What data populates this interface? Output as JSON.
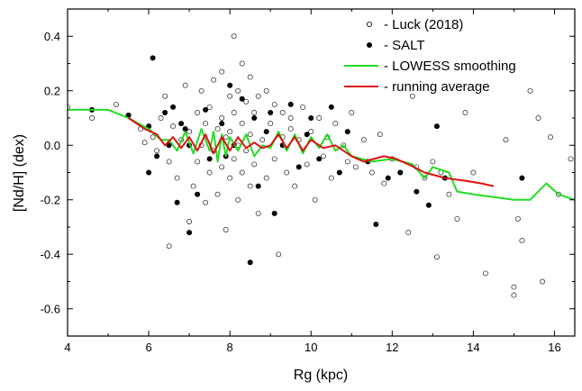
{
  "chart_data": {
    "type": "scatter",
    "xlabel": "Rg   (kpc)",
    "ylabel": "[Nd/H]  (dex)",
    "xlim": [
      4,
      16.5
    ],
    "ylim": [
      -0.7,
      0.5
    ],
    "x_ticks": [
      "4",
      "6",
      "8",
      "10",
      "12",
      "14",
      "16"
    ],
    "y_ticks": [
      "0.4",
      "0.2",
      "0.0",
      "-0.2",
      "-0.4",
      "-0.6"
    ],
    "grid": false,
    "legend_position": "top-right",
    "legend": [
      {
        "symbol": "open-circle",
        "label": "- Luck (2018)"
      },
      {
        "symbol": "filled-circle",
        "label": "- SALT"
      },
      {
        "symbol": "line",
        "color": "#22dd22",
        "label": "- LOWESS smoothing"
      },
      {
        "symbol": "line",
        "color": "#dd1111",
        "label": "- running average"
      }
    ],
    "series": [
      {
        "name": "Luck (2018)",
        "marker": "open-circle",
        "points": [
          [
            4.0,
            0.14
          ],
          [
            4.6,
            0.1
          ],
          [
            5.2,
            0.15
          ],
          [
            5.5,
            0.11
          ],
          [
            5.8,
            0.06
          ],
          [
            5.9,
            0.01
          ],
          [
            6.1,
            0.03
          ],
          [
            6.2,
            -0.02
          ],
          [
            6.3,
            0.1
          ],
          [
            6.4,
            0.18
          ],
          [
            6.5,
            -0.06
          ],
          [
            6.5,
            -0.37
          ],
          [
            6.6,
            0.07
          ],
          [
            6.7,
            -0.12
          ],
          [
            6.8,
            0.02
          ],
          [
            6.9,
            0.22
          ],
          [
            7.0,
            -0.28
          ],
          [
            7.0,
            0.05
          ],
          [
            7.1,
            -0.15
          ],
          [
            7.2,
            0.12
          ],
          [
            7.2,
            -0.06
          ],
          [
            7.3,
            0.2
          ],
          [
            7.3,
            0.0
          ],
          [
            7.4,
            -0.21
          ],
          [
            7.4,
            0.08
          ],
          [
            7.5,
            0.14
          ],
          [
            7.5,
            -0.1
          ],
          [
            7.6,
            0.24
          ],
          [
            7.6,
            -0.02
          ],
          [
            7.7,
            0.06
          ],
          [
            7.7,
            -0.18
          ],
          [
            7.8,
            0.27
          ],
          [
            7.8,
            0.1
          ],
          [
            7.8,
            -0.08
          ],
          [
            7.9,
            0.03
          ],
          [
            7.9,
            -0.31
          ],
          [
            8.0,
            0.18
          ],
          [
            8.0,
            -0.12
          ],
          [
            8.0,
            0.05
          ],
          [
            8.1,
            0.4
          ],
          [
            8.1,
            0.12
          ],
          [
            8.1,
            -0.05
          ],
          [
            8.2,
            0.2
          ],
          [
            8.2,
            -0.2
          ],
          [
            8.2,
            0.0
          ],
          [
            8.3,
            0.3
          ],
          [
            8.3,
            0.08
          ],
          [
            8.3,
            -0.1
          ],
          [
            8.4,
            0.16
          ],
          [
            8.4,
            -0.02
          ],
          [
            8.5,
            0.25
          ],
          [
            8.5,
            -0.15
          ],
          [
            8.5,
            0.04
          ],
          [
            8.6,
            0.12
          ],
          [
            8.6,
            -0.07
          ],
          [
            8.7,
            0.18
          ],
          [
            8.7,
            -0.25
          ],
          [
            8.8,
            0.02
          ],
          [
            8.9,
            0.2
          ],
          [
            8.9,
            -0.12
          ],
          [
            9.0,
            0.08
          ],
          [
            9.1,
            -0.05
          ],
          [
            9.1,
            0.15
          ],
          [
            9.2,
            -0.4
          ],
          [
            9.3,
            0.03
          ],
          [
            9.3,
            0.12
          ],
          [
            9.4,
            -0.1
          ],
          [
            9.5,
            0.06
          ],
          [
            9.5,
            0.1
          ],
          [
            9.6,
            -0.15
          ],
          [
            9.7,
            0.02
          ],
          [
            9.8,
            0.14
          ],
          [
            9.9,
            -0.07
          ],
          [
            10.0,
            0.05
          ],
          [
            10.1,
            -0.2
          ],
          [
            10.2,
            0.1
          ],
          [
            10.3,
            -0.04
          ],
          [
            10.4,
            0.03
          ],
          [
            10.5,
            -0.12
          ],
          [
            10.6,
            0.08
          ],
          [
            10.8,
            0.0
          ],
          [
            10.9,
            -0.06
          ],
          [
            11.0,
            0.12
          ],
          [
            11.1,
            -0.08
          ],
          [
            11.3,
            0.02
          ],
          [
            11.5,
            -0.1
          ],
          [
            11.7,
            0.04
          ],
          [
            11.8,
            -0.14
          ],
          [
            12.0,
            -0.05
          ],
          [
            12.2,
            -0.1
          ],
          [
            12.4,
            -0.32
          ],
          [
            12.5,
            0.18
          ],
          [
            12.6,
            -0.08
          ],
          [
            12.8,
            -0.12
          ],
          [
            13.0,
            -0.06
          ],
          [
            13.1,
            -0.41
          ],
          [
            13.2,
            -0.1
          ],
          [
            13.4,
            -0.18
          ],
          [
            13.6,
            -0.27
          ],
          [
            13.8,
            0.12
          ],
          [
            14.0,
            -0.1
          ],
          [
            14.3,
            -0.47
          ],
          [
            14.8,
            0.02
          ],
          [
            15.0,
            -0.52
          ],
          [
            15.0,
            -0.55
          ],
          [
            15.1,
            -0.27
          ],
          [
            15.2,
            -0.35
          ],
          [
            15.4,
            0.2
          ],
          [
            15.6,
            0.1
          ],
          [
            15.7,
            -0.5
          ],
          [
            15.9,
            0.03
          ],
          [
            16.1,
            -0.18
          ],
          [
            16.4,
            -0.05
          ]
        ]
      },
      {
        "name": "SALT",
        "marker": "filled-circle",
        "points": [
          [
            4.6,
            0.13
          ],
          [
            5.5,
            0.11
          ],
          [
            6.0,
            0.07
          ],
          [
            6.0,
            -0.1
          ],
          [
            6.1,
            0.32
          ],
          [
            6.2,
            -0.04
          ],
          [
            6.4,
            0.12
          ],
          [
            6.5,
            0.0
          ],
          [
            6.6,
            0.14
          ],
          [
            6.7,
            -0.21
          ],
          [
            6.8,
            0.08
          ],
          [
            6.9,
            0.06
          ],
          [
            7.0,
            -0.32
          ],
          [
            7.0,
            0.0
          ],
          [
            7.2,
            -0.18
          ],
          [
            7.4,
            0.13
          ],
          [
            7.5,
            -0.05
          ],
          [
            7.8,
            0.08
          ],
          [
            7.9,
            -0.04
          ],
          [
            8.0,
            0.22
          ],
          [
            8.1,
            0.0
          ],
          [
            8.3,
            0.17
          ],
          [
            8.5,
            -0.43
          ],
          [
            8.6,
            0.1
          ],
          [
            8.7,
            -0.15
          ],
          [
            8.9,
            0.05
          ],
          [
            9.0,
            0.12
          ],
          [
            9.1,
            -0.25
          ],
          [
            9.3,
            0.0
          ],
          [
            9.5,
            0.15
          ],
          [
            9.7,
            -0.08
          ],
          [
            9.9,
            0.04
          ],
          [
            10.0,
            0.1
          ],
          [
            10.2,
            -0.05
          ],
          [
            10.5,
            0.14
          ],
          [
            10.7,
            -0.1
          ],
          [
            10.9,
            0.05
          ],
          [
            11.4,
            -0.06
          ],
          [
            11.6,
            -0.29
          ],
          [
            11.9,
            -0.12
          ],
          [
            12.2,
            -0.1
          ],
          [
            12.6,
            -0.17
          ],
          [
            12.9,
            -0.22
          ],
          [
            13.1,
            0.07
          ],
          [
            13.3,
            -0.12
          ],
          [
            15.2,
            -0.12
          ]
        ]
      },
      {
        "name": "LOWESS smoothing",
        "type": "line",
        "color": "#22dd22",
        "points": [
          [
            4.0,
            0.13
          ],
          [
            5.0,
            0.13
          ],
          [
            5.5,
            0.1
          ],
          [
            6.0,
            0.06
          ],
          [
            6.3,
            0.02
          ],
          [
            6.5,
            0.02
          ],
          [
            6.7,
            -0.02
          ],
          [
            6.9,
            0.05
          ],
          [
            7.1,
            -0.03
          ],
          [
            7.3,
            0.06
          ],
          [
            7.5,
            -0.02
          ],
          [
            7.6,
            0.05
          ],
          [
            7.7,
            -0.06
          ],
          [
            7.8,
            0.04
          ],
          [
            7.9,
            -0.04
          ],
          [
            8.0,
            0.03
          ],
          [
            8.2,
            -0.02
          ],
          [
            8.4,
            0.04
          ],
          [
            8.6,
            -0.04
          ],
          [
            8.8,
            0.0
          ],
          [
            9.0,
            -0.01
          ],
          [
            9.2,
            0.05
          ],
          [
            9.4,
            -0.02
          ],
          [
            9.6,
            0.04
          ],
          [
            9.8,
            -0.03
          ],
          [
            10.0,
            0.03
          ],
          [
            10.2,
            -0.01
          ],
          [
            10.4,
            0.04
          ],
          [
            10.6,
            -0.02
          ],
          [
            10.8,
            0.0
          ],
          [
            11.0,
            -0.04
          ],
          [
            11.5,
            -0.06
          ],
          [
            12.0,
            -0.05
          ],
          [
            12.5,
            -0.07
          ],
          [
            12.8,
            -0.12
          ],
          [
            13.0,
            -0.08
          ],
          [
            13.4,
            -0.1
          ],
          [
            13.6,
            -0.17
          ],
          [
            14.0,
            -0.18
          ],
          [
            14.5,
            -0.19
          ],
          [
            15.0,
            -0.2
          ],
          [
            15.4,
            -0.2
          ],
          [
            15.6,
            -0.17
          ],
          [
            15.8,
            -0.14
          ],
          [
            16.1,
            -0.18
          ],
          [
            16.5,
            -0.2
          ]
        ]
      },
      {
        "name": "running average",
        "type": "line",
        "color": "#dd1111",
        "points": [
          [
            5.5,
            0.1
          ],
          [
            5.9,
            0.06
          ],
          [
            6.2,
            0.04
          ],
          [
            6.4,
            0.0
          ],
          [
            6.6,
            0.03
          ],
          [
            6.8,
            -0.01
          ],
          [
            7.0,
            0.03
          ],
          [
            7.2,
            -0.02
          ],
          [
            7.4,
            0.04
          ],
          [
            7.6,
            -0.03
          ],
          [
            7.8,
            0.03
          ],
          [
            8.0,
            -0.02
          ],
          [
            8.2,
            0.03
          ],
          [
            8.4,
            -0.01
          ],
          [
            8.6,
            0.01
          ],
          [
            8.8,
            -0.01
          ],
          [
            9.0,
            0.0
          ],
          [
            9.2,
            0.04
          ],
          [
            9.4,
            -0.01
          ],
          [
            9.6,
            0.03
          ],
          [
            9.8,
            -0.02
          ],
          [
            10.0,
            0.02
          ],
          [
            10.3,
            -0.01
          ],
          [
            10.6,
            0.0
          ],
          [
            10.8,
            -0.02
          ],
          [
            11.0,
            -0.04
          ],
          [
            11.3,
            -0.06
          ],
          [
            11.8,
            -0.04
          ],
          [
            12.1,
            -0.05
          ],
          [
            12.4,
            -0.07
          ],
          [
            12.8,
            -0.1
          ],
          [
            13.3,
            -0.12
          ],
          [
            13.8,
            -0.13
          ],
          [
            14.2,
            -0.14
          ],
          [
            14.5,
            -0.15
          ]
        ]
      }
    ]
  }
}
